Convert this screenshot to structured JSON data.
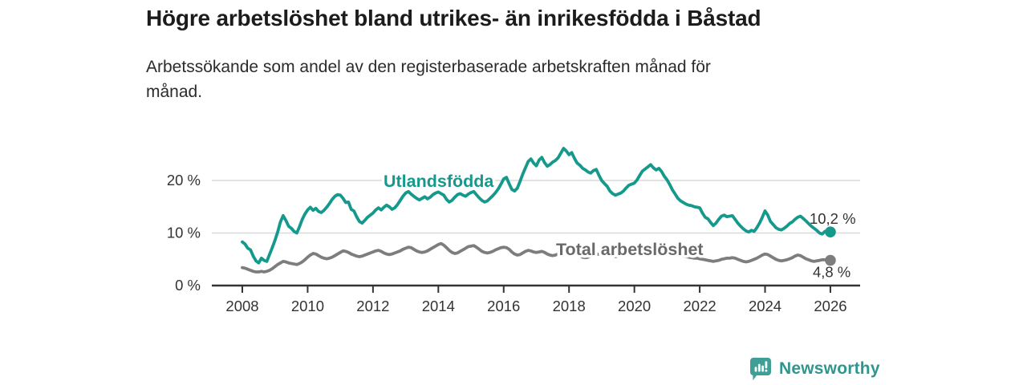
{
  "footer": {
    "brand": "Newsworthy"
  },
  "chart_data": {
    "type": "line",
    "title": "Högre arbetslöshet bland utrikes- än inrikesfödda i Båstad",
    "subtitle": "Arbetssökande som andel av den registerbaserade arbetskraften månad för\nmånad.",
    "unit": "%",
    "x_start_year": 2008,
    "points_per_year": 12,
    "ylim": [
      0,
      27.5
    ],
    "xlim": [
      2007,
      2027
    ],
    "grid": "horizontal-only",
    "legend": "inline-series-labels",
    "y_ticks": [
      {
        "value": 0,
        "label": "0 %"
      },
      {
        "value": 10,
        "label": "10 %"
      },
      {
        "value": 20,
        "label": "20 %"
      }
    ],
    "x_ticks": [
      {
        "value": 2008,
        "label": "2008"
      },
      {
        "value": 2010,
        "label": "2010"
      },
      {
        "value": 2012,
        "label": "2012"
      },
      {
        "value": 2014,
        "label": "2014"
      },
      {
        "value": 2016,
        "label": "2016"
      },
      {
        "value": 2018,
        "label": "2018"
      },
      {
        "value": 2020,
        "label": "2020"
      },
      {
        "value": 2022,
        "label": "2022"
      },
      {
        "value": 2024,
        "label": "2024"
      },
      {
        "value": 2026,
        "label": "2026"
      }
    ],
    "series": [
      {
        "name": "Utlandsfödda",
        "color": "#15998c",
        "label_color": "#15998c",
        "end_label": "10,2 %",
        "end_value": 10.2,
        "values": [
          8.3,
          7.9,
          7.1,
          6.8,
          5.6,
          4.7,
          4.3,
          5.2,
          4.8,
          4.6,
          5.9,
          7.2,
          8.6,
          10.2,
          12.1,
          13.3,
          12.4,
          11.3,
          10.9,
          10.3,
          10.0,
          11.2,
          12.6,
          13.6,
          14.4,
          14.9,
          14.3,
          14.7,
          14.1,
          13.9,
          14.3,
          14.9,
          15.6,
          16.4,
          17.0,
          17.3,
          17.2,
          16.6,
          15.8,
          15.9,
          14.5,
          14.2,
          13.1,
          12.2,
          11.9,
          12.4,
          13.0,
          13.4,
          13.8,
          14.4,
          14.8,
          14.4,
          14.9,
          15.3,
          15.0,
          14.5,
          14.8,
          15.4,
          16.2,
          17.0,
          17.6,
          17.9,
          17.4,
          17.0,
          16.6,
          16.3,
          16.6,
          16.9,
          16.5,
          16.8,
          17.3,
          17.6,
          17.8,
          17.5,
          17.2,
          16.4,
          15.9,
          16.2,
          16.8,
          17.3,
          17.5,
          17.2,
          17.0,
          17.4,
          17.7,
          17.9,
          17.3,
          16.7,
          16.2,
          15.9,
          16.1,
          16.6,
          17.1,
          17.7,
          18.4,
          19.3,
          20.3,
          20.6,
          19.4,
          18.3,
          18.0,
          18.5,
          19.8,
          21.2,
          22.4,
          23.6,
          24.1,
          23.3,
          22.8,
          23.9,
          24.4,
          23.4,
          22.7,
          23.0,
          23.5,
          23.8,
          24.3,
          25.2,
          26.1,
          25.6,
          24.9,
          25.3,
          24.2,
          23.3,
          22.9,
          22.3,
          22.0,
          21.6,
          21.4,
          21.9,
          22.1,
          21.0,
          20.0,
          19.4,
          18.9,
          18.0,
          17.5,
          17.2,
          17.4,
          17.6,
          18.0,
          18.6,
          19.1,
          19.3,
          19.5,
          20.1,
          21.0,
          21.8,
          22.2,
          22.6,
          23.0,
          22.4,
          22.0,
          22.3,
          21.7,
          20.8,
          20.1,
          19.2,
          18.2,
          17.4,
          16.6,
          16.1,
          15.8,
          15.5,
          15.3,
          15.2,
          15.0,
          14.9,
          14.8,
          13.8,
          13.0,
          12.7,
          12.0,
          11.4,
          11.9,
          12.6,
          13.2,
          13.4,
          13.1,
          13.2,
          13.3,
          12.6,
          11.9,
          11.3,
          10.8,
          10.4,
          10.2,
          10.5,
          10.3,
          11.0,
          11.9,
          13.0,
          14.2,
          13.4,
          12.2,
          11.6,
          11.0,
          10.7,
          10.6,
          10.9,
          11.3,
          11.8,
          12.1,
          12.6,
          13.0,
          13.2,
          12.8,
          12.3,
          11.8,
          11.3,
          10.9,
          10.5,
          10.0,
          9.8,
          10.3,
          10.0,
          10.2
        ]
      },
      {
        "name": "Total arbetslöshet",
        "color": "#7d7d7d",
        "label_color": "#696969",
        "end_label": "4,8 %",
        "end_value": 4.8,
        "values": [
          3.4,
          3.3,
          3.1,
          2.9,
          2.7,
          2.6,
          2.6,
          2.7,
          2.6,
          2.7,
          2.9,
          3.2,
          3.6,
          4.0,
          4.3,
          4.6,
          4.5,
          4.3,
          4.2,
          4.1,
          4.0,
          4.2,
          4.5,
          4.9,
          5.4,
          5.8,
          6.1,
          6.0,
          5.7,
          5.4,
          5.2,
          5.1,
          5.2,
          5.4,
          5.7,
          6.0,
          6.3,
          6.6,
          6.5,
          6.3,
          6.0,
          5.8,
          5.6,
          5.5,
          5.6,
          5.8,
          6.0,
          6.2,
          6.4,
          6.6,
          6.7,
          6.5,
          6.2,
          6.0,
          5.9,
          6.0,
          6.2,
          6.4,
          6.6,
          6.9,
          7.1,
          7.3,
          7.2,
          6.9,
          6.6,
          6.4,
          6.3,
          6.4,
          6.6,
          6.9,
          7.2,
          7.5,
          7.8,
          8.0,
          7.7,
          7.2,
          6.7,
          6.3,
          6.1,
          6.2,
          6.5,
          6.8,
          7.1,
          7.4,
          7.5,
          7.6,
          7.3,
          6.9,
          6.5,
          6.3,
          6.2,
          6.3,
          6.5,
          6.8,
          7.0,
          7.2,
          7.3,
          7.2,
          6.9,
          6.4,
          6.0,
          5.8,
          5.9,
          6.2,
          6.5,
          6.7,
          6.6,
          6.4,
          6.3,
          6.4,
          6.5,
          6.3,
          6.0,
          5.8,
          5.7,
          5.8,
          6.0,
          6.2,
          6.4,
          6.5,
          6.5,
          6.4,
          6.2,
          5.9,
          5.6,
          5.4,
          5.3,
          5.4,
          5.6,
          5.8,
          5.9,
          6.0,
          6.1,
          6.2,
          6.0,
          5.8,
          5.6,
          5.5,
          5.6,
          5.8,
          6.0,
          6.2,
          6.4,
          6.5,
          6.7,
          6.9,
          7.2,
          7.4,
          7.5,
          7.4,
          7.2,
          7.0,
          6.9,
          6.8,
          6.7,
          6.6,
          6.6,
          6.5,
          6.3,
          6.1,
          5.9,
          5.7,
          5.6,
          5.5,
          5.4,
          5.3,
          5.2,
          5.2,
          5.1,
          5.0,
          4.9,
          4.8,
          4.7,
          4.6,
          4.7,
          4.8,
          5.0,
          5.1,
          5.2,
          5.2,
          5.3,
          5.2,
          5.0,
          4.8,
          4.6,
          4.5,
          4.6,
          4.8,
          5.0,
          5.2,
          5.5,
          5.8,
          6.0,
          5.9,
          5.6,
          5.3,
          5.0,
          4.8,
          4.7,
          4.8,
          4.9,
          5.1,
          5.3,
          5.6,
          5.8,
          5.7,
          5.4,
          5.1,
          4.9,
          4.7,
          4.6,
          4.7,
          4.8,
          4.9,
          4.9,
          4.8,
          4.8
        ]
      }
    ],
    "style": {
      "grid_color": "#d9d9d9",
      "axis_color": "#333333",
      "tick_label_color": "#333333",
      "annotation_color": "#333333"
    }
  }
}
